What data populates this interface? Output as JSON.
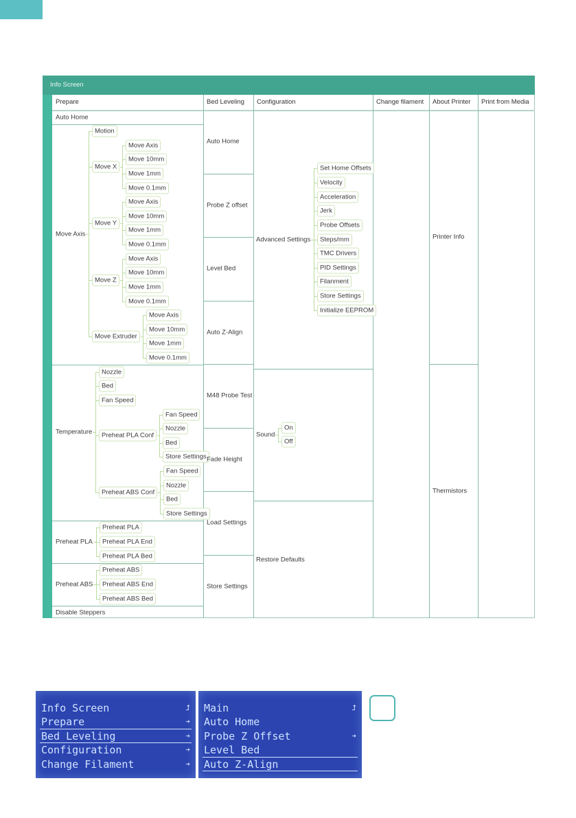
{
  "table": {
    "title": "Info Screen",
    "columns": [
      "Prepare",
      "Bed Leveling",
      "Configuration",
      "Change filament",
      "About Printer",
      "Print from Media"
    ],
    "prepare": [
      {
        "label": "Auto Home"
      },
      {
        "label": "Move Axis",
        "children": [
          {
            "label": "Motion"
          },
          {
            "label": "Move X",
            "children": [
              {
                "label": "Move Axis"
              },
              {
                "label": "Move 10mm"
              },
              {
                "label": "Move 1mm"
              },
              {
                "label": "Move 0.1mm"
              }
            ]
          },
          {
            "label": "Move Y",
            "children": [
              {
                "label": "Move Axis"
              },
              {
                "label": "Move 10mm"
              },
              {
                "label": "Move 1mm"
              },
              {
                "label": "Move 0.1mm"
              }
            ]
          },
          {
            "label": "Move Z",
            "children": [
              {
                "label": "Move Axis"
              },
              {
                "label": "Move 10mm"
              },
              {
                "label": "Move 1mm"
              },
              {
                "label": "Move 0.1mm"
              }
            ]
          },
          {
            "label": "Move Extruder",
            "children": [
              {
                "label": "Move Axis"
              },
              {
                "label": "Move 10mm"
              },
              {
                "label": "Move 1mm"
              },
              {
                "label": "Move 0.1mm"
              }
            ]
          }
        ]
      },
      {
        "label": "Temperature",
        "children": [
          {
            "label": "Nozzle"
          },
          {
            "label": "Bed"
          },
          {
            "label": "Fan Speed"
          },
          {
            "label": "Preheat PLA Conf",
            "children": [
              {
                "label": "Fan Speed"
              },
              {
                "label": "Nozzle"
              },
              {
                "label": "Bed"
              },
              {
                "label": "Store Settings"
              }
            ]
          },
          {
            "label": "Preheat ABS Conf",
            "children": [
              {
                "label": "Fan Speed"
              },
              {
                "label": "Nozzle"
              },
              {
                "label": "Bed"
              },
              {
                "label": "Store Settings"
              }
            ]
          }
        ]
      },
      {
        "label": "Preheat PLA",
        "children": [
          {
            "label": "Preheat PLA"
          },
          {
            "label": "Preheat PLA End"
          },
          {
            "label": "Preheat PLA Bed"
          }
        ]
      },
      {
        "label": "Preheat ABS",
        "children": [
          {
            "label": "Preheat ABS"
          },
          {
            "label": "Preheat ABS End"
          },
          {
            "label": "Preheat ABS Bed"
          }
        ]
      },
      {
        "label": "Disable Steppers"
      }
    ],
    "bed_leveling": [
      "Auto Home",
      "Probe Z offset",
      "Level Bed",
      "Auto Z-Align",
      "M48 Probe Test",
      "Fade Height",
      "Load Settings",
      "Store Settings"
    ],
    "configuration": [
      {
        "label": "Advanced Settings",
        "children": [
          {
            "label": "Set Home Offsets"
          },
          {
            "label": "Velocity"
          },
          {
            "label": "Acceleration"
          },
          {
            "label": "Jerk"
          },
          {
            "label": "Probe Offsets"
          },
          {
            "label": "Steps/mm"
          },
          {
            "label": "TMC Drivers"
          },
          {
            "label": "PID Settings"
          },
          {
            "label": "Filanment"
          },
          {
            "label": "Store Settings"
          },
          {
            "label": "Initialize EEPROM"
          }
        ]
      },
      {
        "label": "Sound",
        "children": [
          {
            "label": "On"
          },
          {
            "label": "Off"
          }
        ]
      },
      {
        "label": "Restore Defaults"
      }
    ],
    "about_printer": [
      "Printer Info",
      "Thermistors"
    ]
  },
  "lcd_screens": [
    {
      "lines": [
        {
          "text": "Info Screen",
          "icon": "return-arrow-icon",
          "glyph": "⮥"
        },
        {
          "text": "Prepare",
          "icon": "submenu-arrow-icon",
          "glyph": "➔"
        },
        {
          "text": "Bed Leveling",
          "icon": "submenu-arrow-icon",
          "glyph": "➔"
        },
        {
          "text": "Configuration",
          "icon": "submenu-arrow-icon",
          "glyph": "➔"
        },
        {
          "text": "Change Filament",
          "icon": "submenu-arrow-icon",
          "glyph": "➔"
        }
      ],
      "selected": 2
    },
    {
      "lines": [
        {
          "text": "Main",
          "icon": "return-arrow-icon",
          "glyph": "⮥"
        },
        {
          "text": "Auto Home"
        },
        {
          "text": "Probe Z Offset",
          "icon": "submenu-arrow-icon",
          "glyph": "➔"
        },
        {
          "text": "Level Bed"
        },
        {
          "text": "Auto Z-Align"
        }
      ],
      "selected": 4
    }
  ],
  "colors": {
    "header": "#42a590",
    "stripe": "#45b8a0",
    "lcd": "#2c44b0",
    "corner": "#5bbfc3"
  }
}
